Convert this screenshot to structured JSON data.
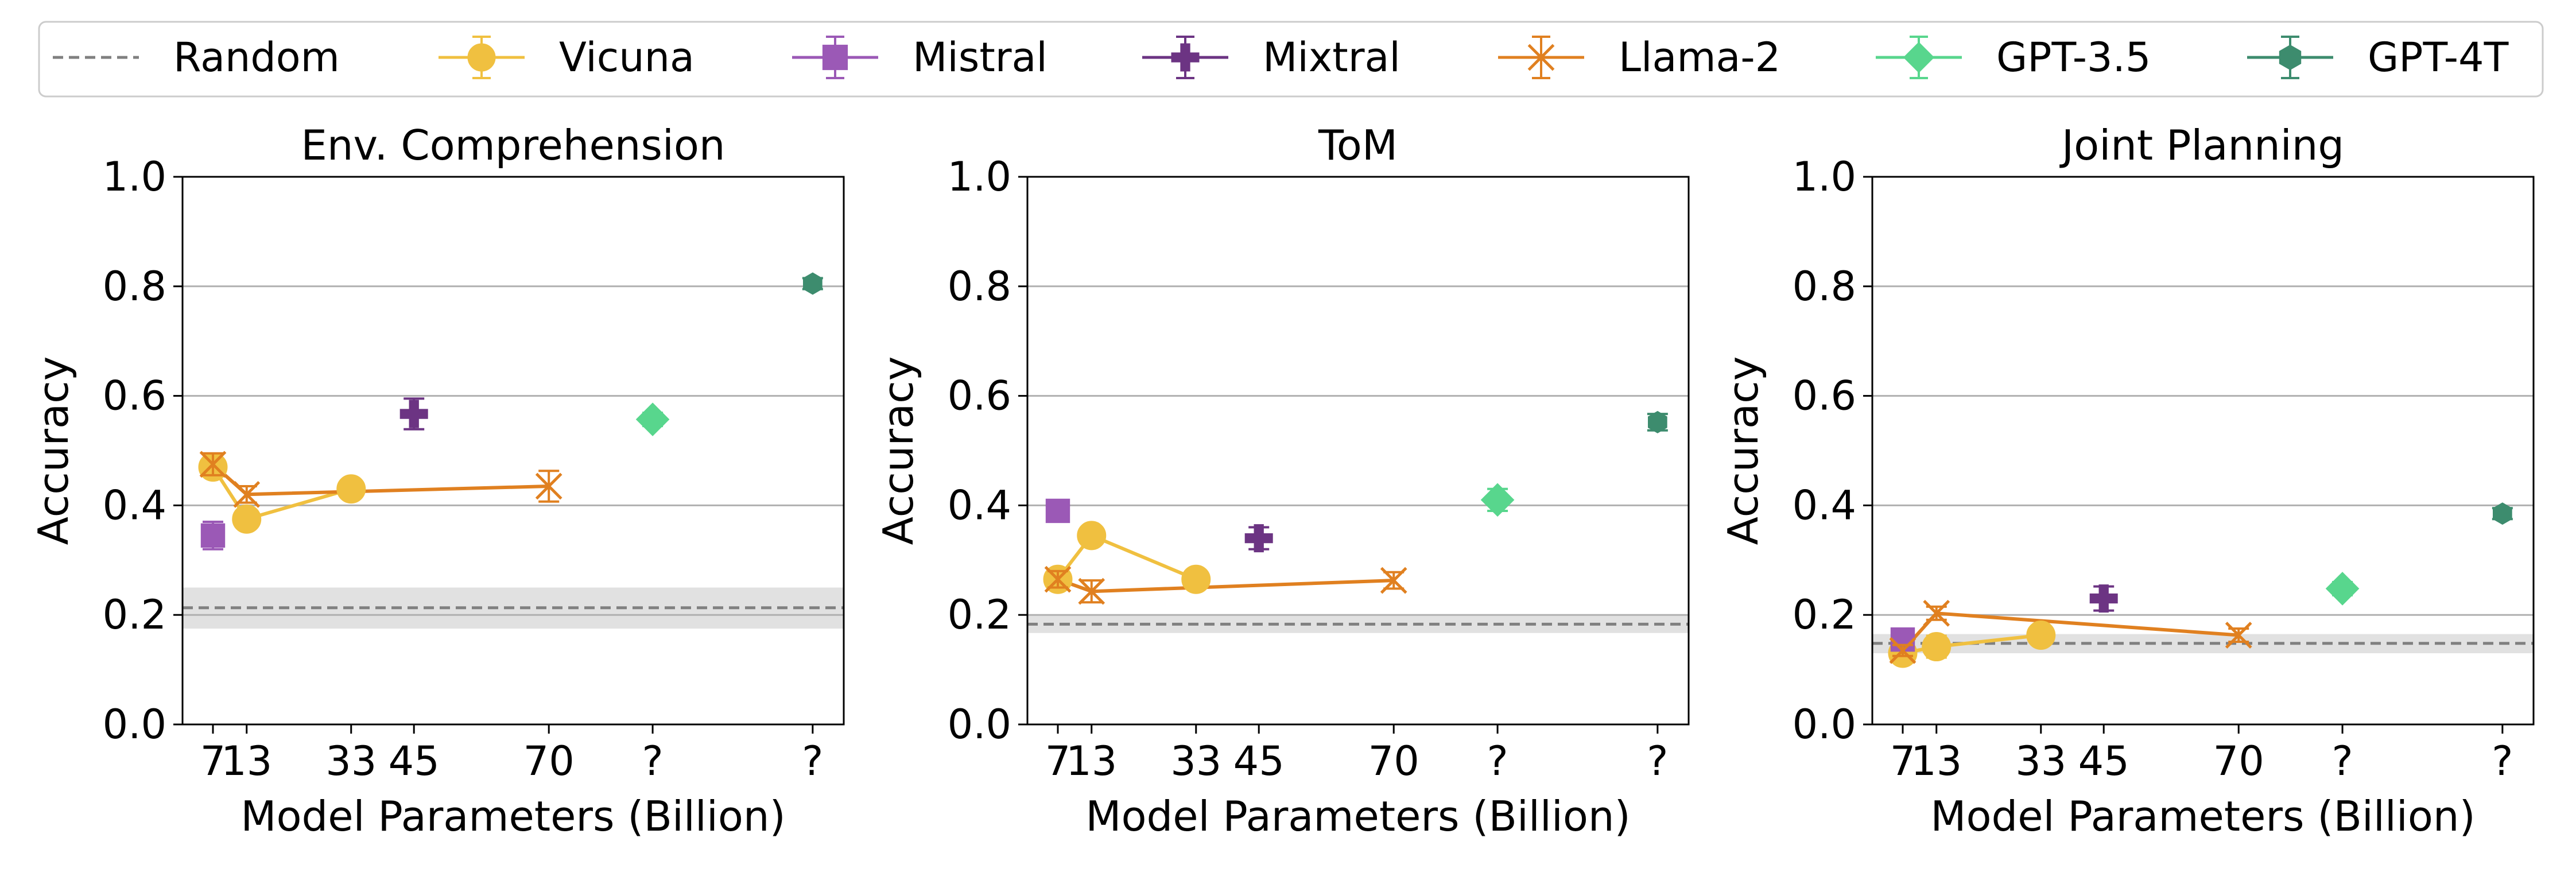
{
  "legend": {
    "placement": "top",
    "items": [
      {
        "name": "Random",
        "color": "#808080",
        "marker": "dashed-line"
      },
      {
        "name": "Vicuna",
        "color": "#f0c040",
        "marker": "circle"
      },
      {
        "name": "Mistral",
        "color": "#9b59b6",
        "marker": "square"
      },
      {
        "name": "Mixtral",
        "color": "#6c3483",
        "marker": "plus"
      },
      {
        "name": "Llama-2",
        "color": "#e08020",
        "marker": "x"
      },
      {
        "name": "GPT-3.5",
        "color": "#58d68d",
        "marker": "diamond"
      },
      {
        "name": "GPT-4T",
        "color": "#3d8c6e",
        "marker": "hexagon"
      }
    ]
  },
  "colors": {
    "Vicuna": "#f0c040",
    "Mistral": "#9b59b6",
    "Mixtral": "#6c3483",
    "Llama-2": "#e08020",
    "GPT-3.5": "#58d68d",
    "GPT-4T": "#3d8c6e",
    "Random": "#808080",
    "random_band": "#d9d9d9",
    "grid": "#b0b0b0"
  },
  "chart_data": [
    {
      "type": "line",
      "title": "Env. Comprehension",
      "xlabel": "Model Parameters (Billion)",
      "ylabel": "Accuracy",
      "ylim": [
        0,
        1.0
      ],
      "yticks": [
        "0.0",
        "0.2",
        "0.4",
        "0.6",
        "0.8",
        "1.0"
      ],
      "xticks": [
        "7",
        "13",
        "33",
        "45",
        "70",
        "?",
        "?"
      ],
      "grid": "y",
      "random": {
        "value": 0.213,
        "band": [
          0.175,
          0.25
        ]
      },
      "series": [
        {
          "name": "Vicuna",
          "points": [
            {
              "x": "7",
              "y": 0.47,
              "err": 0.015
            },
            {
              "x": "13",
              "y": 0.375,
              "err": 0.012
            },
            {
              "x": "33",
              "y": 0.43,
              "err": 0.01
            }
          ]
        },
        {
          "name": "Mistral",
          "points": [
            {
              "x": "7",
              "y": 0.345,
              "err": 0.025
            }
          ]
        },
        {
          "name": "Mixtral",
          "points": [
            {
              "x": "45",
              "y": 0.567,
              "err": 0.028
            }
          ]
        },
        {
          "name": "Llama-2",
          "points": [
            {
              "x": "7",
              "y": 0.475,
              "err": 0.02
            },
            {
              "x": "13",
              "y": 0.42,
              "err": 0.015
            },
            {
              "x": "70",
              "y": 0.435,
              "err": 0.028
            }
          ]
        },
        {
          "name": "GPT-3.5",
          "points": [
            {
              "x": "?a",
              "y": 0.557,
              "err": 0.012
            }
          ]
        },
        {
          "name": "GPT-4T",
          "points": [
            {
              "x": "?b",
              "y": 0.805,
              "err": 0.01
            }
          ]
        }
      ]
    },
    {
      "type": "line",
      "title": "ToM",
      "xlabel": "Model Parameters (Billion)",
      "ylabel": "Accuracy",
      "ylim": [
        0,
        1.0
      ],
      "yticks": [
        "0.0",
        "0.2",
        "0.4",
        "0.6",
        "0.8",
        "1.0"
      ],
      "xticks": [
        "7",
        "13",
        "33",
        "45",
        "70",
        "?",
        "?"
      ],
      "grid": "y",
      "random": {
        "value": 0.183,
        "band": [
          0.167,
          0.2
        ]
      },
      "series": [
        {
          "name": "Vicuna",
          "points": [
            {
              "x": "7",
              "y": 0.265,
              "err": 0.01
            },
            {
              "x": "13",
              "y": 0.345,
              "err": 0.01
            },
            {
              "x": "33",
              "y": 0.265,
              "err": 0.01
            }
          ]
        },
        {
          "name": "Mistral",
          "points": [
            {
              "x": "7",
              "y": 0.39,
              "err": 0.01
            }
          ]
        },
        {
          "name": "Mixtral",
          "points": [
            {
              "x": "45",
              "y": 0.34,
              "err": 0.02
            }
          ]
        },
        {
          "name": "Llama-2",
          "points": [
            {
              "x": "7",
              "y": 0.265,
              "err": 0.015
            },
            {
              "x": "13",
              "y": 0.243,
              "err": 0.02
            },
            {
              "x": "70",
              "y": 0.263,
              "err": 0.015
            }
          ]
        },
        {
          "name": "GPT-3.5",
          "points": [
            {
              "x": "?a",
              "y": 0.41,
              "err": 0.02
            }
          ]
        },
        {
          "name": "GPT-4T",
          "points": [
            {
              "x": "?b",
              "y": 0.552,
              "err": 0.015
            }
          ]
        }
      ]
    },
    {
      "type": "line",
      "title": "Joint Planning",
      "xlabel": "Model Parameters (Billion)",
      "ylabel": "Accuracy",
      "ylim": [
        0,
        1.0
      ],
      "yticks": [
        "0.0",
        "0.2",
        "0.4",
        "0.6",
        "0.8",
        "1.0"
      ],
      "xticks": [
        "7",
        "13",
        "33",
        "45",
        "70",
        "?",
        "?"
      ],
      "grid": "y",
      "random": {
        "value": 0.148,
        "band": [
          0.13,
          0.165
        ]
      },
      "series": [
        {
          "name": "Vicuna",
          "points": [
            {
              "x": "7",
              "y": 0.13,
              "err": 0.012
            },
            {
              "x": "13",
              "y": 0.142,
              "err": 0.02
            },
            {
              "x": "33",
              "y": 0.163,
              "err": 0.012
            }
          ]
        },
        {
          "name": "Mistral",
          "points": [
            {
              "x": "7",
              "y": 0.155,
              "err": 0.012
            }
          ]
        },
        {
          "name": "Mixtral",
          "points": [
            {
              "x": "45",
              "y": 0.23,
              "err": 0.022
            }
          ]
        },
        {
          "name": "Llama-2",
          "points": [
            {
              "x": "7",
              "y": 0.135,
              "err": 0.01
            },
            {
              "x": "13",
              "y": 0.203,
              "err": 0.012
            },
            {
              "x": "70",
              "y": 0.163,
              "err": 0.012
            }
          ]
        },
        {
          "name": "GPT-3.5",
          "points": [
            {
              "x": "?a",
              "y": 0.248,
              "err": 0.012
            }
          ]
        },
        {
          "name": "GPT-4T",
          "points": [
            {
              "x": "?b",
              "y": 0.385,
              "err": 0.01
            }
          ]
        }
      ]
    }
  ]
}
